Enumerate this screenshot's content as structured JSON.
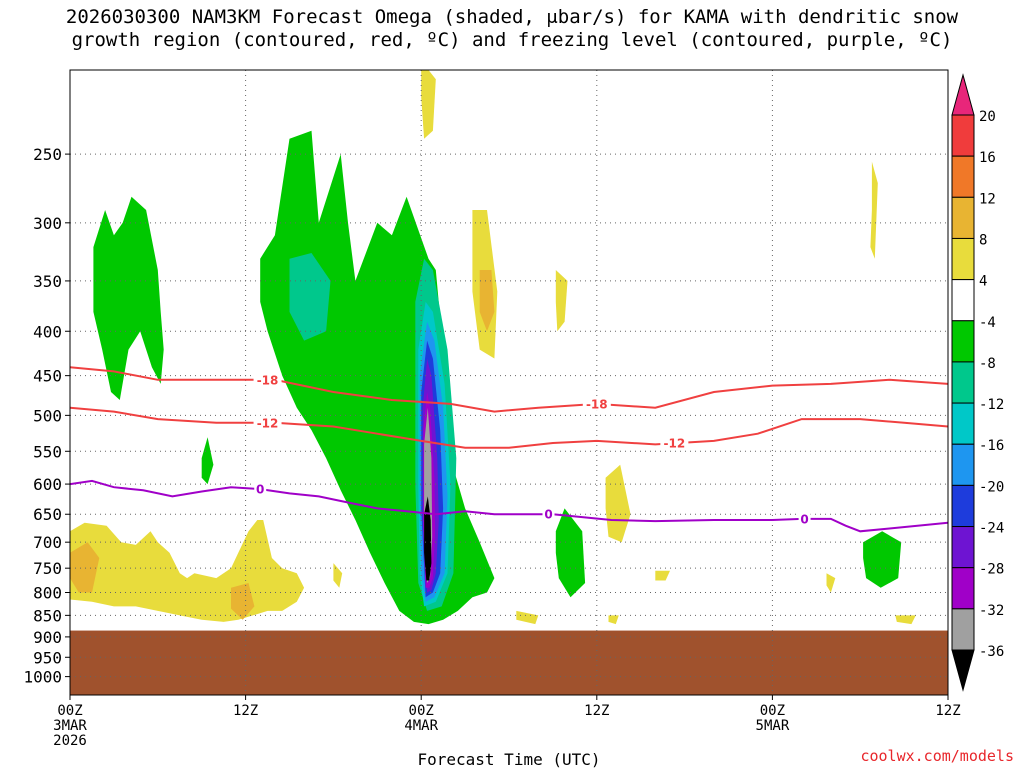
{
  "title": {
    "line1": "2026030300 NAM3KM Forecast Omega (shaded, μbar/s) for KAMA with dendritic snow",
    "line2": "growth region (contoured, red, ºC) and freezing level (contoured, purple, ºC)"
  },
  "watermark": "coolwx.com/models",
  "chart_data": {
    "type": "heatmap",
    "title": "2026030300 NAM3KM Forecast Omega (shaded, μbar/s) for KAMA with dendritic snow growth region (contoured, red, ºC) and freezing level (contoured, purple, ºC)",
    "xlabel": "Forecast Time (UTC)",
    "ylabel": "",
    "x_ticks": [
      {
        "h": 0,
        "lines": [
          "00Z",
          "3MAR",
          "2026"
        ]
      },
      {
        "h": 12,
        "lines": [
          "12Z"
        ]
      },
      {
        "h": 24,
        "lines": [
          "00Z",
          "4MAR"
        ]
      },
      {
        "h": 36,
        "lines": [
          "12Z"
        ]
      },
      {
        "h": 48,
        "lines": [
          "00Z",
          "5MAR"
        ]
      },
      {
        "h": 60,
        "lines": [
          "12Z"
        ]
      }
    ],
    "xlim_hours": [
      0,
      60
    ],
    "ylim_hpa": [
      1050,
      200
    ],
    "y_scale": "log",
    "y_ticks": [
      250,
      300,
      350,
      400,
      450,
      500,
      550,
      600,
      650,
      700,
      750,
      800,
      850,
      900,
      950,
      1000
    ],
    "grid": "dotted",
    "colorbar": {
      "levels": [
        20,
        16,
        12,
        8,
        4,
        -4,
        -8,
        -12,
        -16,
        -20,
        -24,
        -28,
        -32,
        -36
      ],
      "colors": [
        "#e8267a",
        "#f03c3c",
        "#f07828",
        "#e8b432",
        "#e8dc3c",
        "#ffffff",
        "#00c800",
        "#00c88c",
        "#00c8c8",
        "#1e96f0",
        "#1e3cdc",
        "#6e14d2",
        "#a000c8",
        "#a0a0a0",
        "#000000"
      ]
    },
    "ground": {
      "color": "#a0522d",
      "top_hpa": 885
    },
    "omega_regions": [
      {
        "value": -6,
        "color": "#00c800",
        "x": [
          1.6,
          2.4,
          3.0,
          3.6,
          4.2,
          5.2,
          6.0,
          6.2,
          6.4,
          6.2,
          5.6,
          4.8,
          4.0,
          3.4,
          2.8,
          2.2,
          1.6
        ],
        "p": [
          320,
          290,
          310,
          300,
          280,
          290,
          340,
          380,
          420,
          460,
          440,
          400,
          420,
          480,
          470,
          420,
          380
        ]
      },
      {
        "value": -6,
        "color": "#00c800",
        "x": [
          13.0,
          14.0,
          15.0,
          16.5,
          17.0,
          18.5,
          19.0,
          19.5,
          21.0,
          22.0,
          23.0,
          24.5,
          25.0,
          25.5,
          26.0,
          27.0,
          28.0,
          29.0,
          28.5,
          27.5,
          26.5,
          25.5,
          24.5,
          23.5,
          22.5,
          21.5,
          20.5,
          19.5,
          18.5,
          17.5,
          16.5,
          15.5,
          14.5,
          13.5,
          13.0
        ],
        "p": [
          330,
          310,
          240,
          235,
          300,
          250,
          300,
          350,
          300,
          310,
          280,
          330,
          340,
          420,
          560,
          640,
          700,
          770,
          800,
          810,
          840,
          860,
          870,
          865,
          840,
          780,
          720,
          660,
          610,
          560,
          520,
          490,
          450,
          400,
          370
        ]
      },
      {
        "value": -6,
        "color": "#00c800",
        "x": [
          9.0,
          9.4,
          9.8,
          9.4,
          9.0
        ],
        "p": [
          560,
          530,
          570,
          600,
          590
        ]
      },
      {
        "value": -6,
        "color": "#00c800",
        "x": [
          33.2,
          33.8,
          35.0,
          35.2,
          34.2,
          33.4,
          33.2
        ],
        "p": [
          680,
          640,
          680,
          780,
          810,
          770,
          720
        ]
      },
      {
        "value": -6,
        "color": "#00c800",
        "x": [
          54.2,
          55.5,
          56.8,
          56.6,
          55.4,
          54.4,
          54.2
        ],
        "p": [
          700,
          680,
          700,
          770,
          790,
          770,
          730
        ]
      },
      {
        "value": -10,
        "color": "#00c88c",
        "x": [
          15.0,
          16.5,
          17.8,
          17.5,
          16.0,
          15.0
        ],
        "p": [
          330,
          325,
          350,
          400,
          410,
          380
        ]
      },
      {
        "value": -10,
        "color": "#00c88c",
        "x": [
          23.6,
          24.2,
          24.8,
          25.8,
          26.4,
          26.2,
          25.4,
          24.4,
          23.8,
          23.6
        ],
        "p": [
          370,
          330,
          340,
          420,
          560,
          760,
          830,
          840,
          780,
          600
        ]
      },
      {
        "value": -14,
        "color": "#00c8c8",
        "x": [
          23.8,
          24.3,
          24.8,
          25.6,
          26.0,
          25.8,
          25.0,
          24.2,
          23.9,
          23.8
        ],
        "p": [
          420,
          370,
          380,
          460,
          600,
          760,
          820,
          830,
          760,
          600
        ]
      },
      {
        "value": -18,
        "color": "#1e96f0",
        "x": [
          23.9,
          24.4,
          24.9,
          25.5,
          25.8,
          25.6,
          24.9,
          24.3,
          24.0,
          23.9
        ],
        "p": [
          450,
          390,
          410,
          490,
          620,
          760,
          810,
          820,
          760,
          610
        ]
      },
      {
        "value": -22,
        "color": "#1e3cdc",
        "x": [
          24.0,
          24.4,
          24.8,
          25.3,
          25.5,
          25.3,
          24.8,
          24.3,
          24.0
        ],
        "p": [
          470,
          410,
          430,
          520,
          640,
          760,
          800,
          810,
          640
        ]
      },
      {
        "value": -26,
        "color": "#6e14d2",
        "x": [
          24.1,
          24.4,
          24.7,
          25.1,
          25.2,
          25.0,
          24.7,
          24.4,
          24.1
        ],
        "p": [
          490,
          430,
          450,
          560,
          660,
          760,
          795,
          800,
          660
        ]
      },
      {
        "value": -30,
        "color": "#a000c8",
        "x": [
          24.15,
          24.4,
          24.6,
          24.9,
          24.95,
          24.8,
          24.55,
          24.3,
          24.15
        ],
        "p": [
          520,
          470,
          490,
          590,
          680,
          770,
          790,
          790,
          680
        ]
      },
      {
        "value": -34,
        "color": "#a0a0a0",
        "x": [
          24.2,
          24.45,
          24.7,
          24.75,
          24.6,
          24.4,
          24.2
        ],
        "p": [
          540,
          490,
          560,
          690,
          770,
          780,
          690
        ]
      },
      {
        "value": -38,
        "color": "#000000",
        "x": [
          24.2,
          24.45,
          24.65,
          24.7,
          24.55,
          24.35,
          24.2
        ],
        "p": [
          650,
          620,
          660,
          740,
          775,
          775,
          720
        ]
      },
      {
        "value": 5,
        "color": "#e8dc3c",
        "x": [
          24.0,
          24.5,
          25.0,
          24.8,
          24.2,
          24.0
        ],
        "p": [
          200,
          200,
          205,
          235,
          240,
          215
        ]
      },
      {
        "value": 5,
        "color": "#e8dc3c",
        "x": [
          27.5,
          28.5,
          29.2,
          29.0,
          28.0,
          27.5
        ],
        "p": [
          290,
          290,
          360,
          430,
          420,
          360
        ]
      },
      {
        "value": 9,
        "color": "#e8b432",
        "x": [
          28.0,
          28.8,
          29.0,
          28.5,
          28.0
        ],
        "p": [
          340,
          340,
          380,
          400,
          380
        ]
      },
      {
        "value": 5,
        "color": "#e8dc3c",
        "x": [
          33.2,
          34.0,
          33.8,
          33.3,
          33.2
        ],
        "p": [
          340,
          350,
          390,
          400,
          370
        ]
      },
      {
        "value": 5,
        "color": "#e8dc3c",
        "x": [
          54.8,
          55.2,
          55.0,
          54.7,
          54.8
        ],
        "p": [
          255,
          270,
          330,
          320,
          290
        ]
      },
      {
        "value": 5,
        "color": "#e8dc3c",
        "x": [
          0.0,
          1.0,
          2.5,
          3.5,
          4.5,
          5.5,
          6.0,
          6.8,
          7.5,
          8.0,
          8.5,
          10.0,
          11.0,
          11.5,
          12.2,
          12.8,
          13.2,
          13.8,
          14.5,
          15.5,
          16.0,
          15.5,
          14.5,
          13.5,
          12.5,
          11.5,
          10.5,
          9.0,
          7.5,
          6.0,
          4.5,
          3.0,
          1.5,
          0.0
        ],
        "p": [
          680,
          665,
          670,
          700,
          705,
          680,
          700,
          720,
          760,
          770,
          760,
          770,
          750,
          720,
          680,
          660,
          660,
          730,
          750,
          760,
          790,
          820,
          840,
          840,
          850,
          860,
          865,
          860,
          850,
          840,
          830,
          830,
          820,
          815
        ]
      },
      {
        "value": 9,
        "color": "#e8b432",
        "x": [
          0.0,
          1.2,
          2.0,
          1.5,
          0.6,
          0.0
        ],
        "p": [
          720,
          700,
          730,
          800,
          800,
          770
        ]
      },
      {
        "value": 9,
        "color": "#e8b432",
        "x": [
          11.0,
          12.2,
          12.6,
          11.8,
          11.0
        ],
        "p": [
          790,
          780,
          830,
          860,
          835
        ]
      },
      {
        "value": 5,
        "color": "#e8dc3c",
        "x": [
          18.0,
          18.6,
          18.4,
          18.0
        ],
        "p": [
          740,
          760,
          790,
          775
        ]
      },
      {
        "value": 5,
        "color": "#e8dc3c",
        "x": [
          36.6,
          37.6,
          38.3,
          37.7,
          36.8,
          36.6
        ],
        "p": [
          590,
          570,
          650,
          700,
          690,
          640
        ]
      },
      {
        "value": 5,
        "color": "#e8dc3c",
        "x": [
          30.5,
          32.0,
          31.8,
          30.5
        ],
        "p": [
          840,
          850,
          870,
          860
        ]
      },
      {
        "value": 5,
        "color": "#e8dc3c",
        "x": [
          36.8,
          37.5,
          37.3,
          36.8
        ],
        "p": [
          850,
          850,
          870,
          865
        ]
      },
      {
        "value": 5,
        "color": "#e8dc3c",
        "x": [
          40.0,
          41.0,
          40.7,
          40.0
        ],
        "p": [
          755,
          755,
          775,
          775
        ]
      },
      {
        "value": 5,
        "color": "#e8dc3c",
        "x": [
          51.7,
          52.3,
          52.0,
          51.7
        ],
        "p": [
          760,
          770,
          800,
          785
        ]
      },
      {
        "value": 5,
        "color": "#e8dc3c",
        "x": [
          56.4,
          57.8,
          57.5,
          56.5
        ],
        "p": [
          850,
          850,
          870,
          865
        ]
      }
    ],
    "contours": [
      {
        "label": "-18",
        "color": "#f04040",
        "label_at_h": [
          13.5,
          36.0
        ],
        "x": [
          0,
          3,
          6,
          10,
          14,
          18,
          22,
          26,
          29,
          32,
          36,
          40,
          44,
          48,
          52,
          56,
          60
        ],
        "p": [
          440,
          445,
          455,
          455,
          455,
          470,
          480,
          485,
          495,
          490,
          485,
          490,
          470,
          462,
          460,
          455,
          460
        ]
      },
      {
        "label": "-12",
        "color": "#f04040",
        "label_at_h": [
          13.5,
          41.3
        ],
        "x": [
          0,
          3,
          6,
          10,
          14,
          18,
          21,
          24,
          27,
          30,
          33,
          36,
          40,
          44,
          47,
          50,
          54,
          57,
          60
        ],
        "p": [
          490,
          495,
          505,
          510,
          510,
          515,
          525,
          535,
          545,
          545,
          538,
          535,
          540,
          535,
          525,
          505,
          505,
          510,
          515
        ]
      },
      {
        "label": "0",
        "color": "#a000c8",
        "label_at_h": [
          13.0,
          32.7,
          50.2
        ],
        "x": [
          0,
          1.5,
          3,
          5,
          7,
          9,
          11,
          13,
          15,
          17,
          19,
          21,
          23,
          25,
          27,
          29,
          31,
          33,
          35,
          37,
          40,
          44,
          48,
          50,
          52,
          53,
          54,
          56,
          60
        ],
        "p": [
          600,
          595,
          605,
          610,
          620,
          612,
          605,
          608,
          615,
          620,
          630,
          640,
          645,
          650,
          645,
          650,
          650,
          650,
          655,
          660,
          662,
          660,
          660,
          658,
          658,
          670,
          680,
          675,
          665
        ]
      }
    ]
  }
}
